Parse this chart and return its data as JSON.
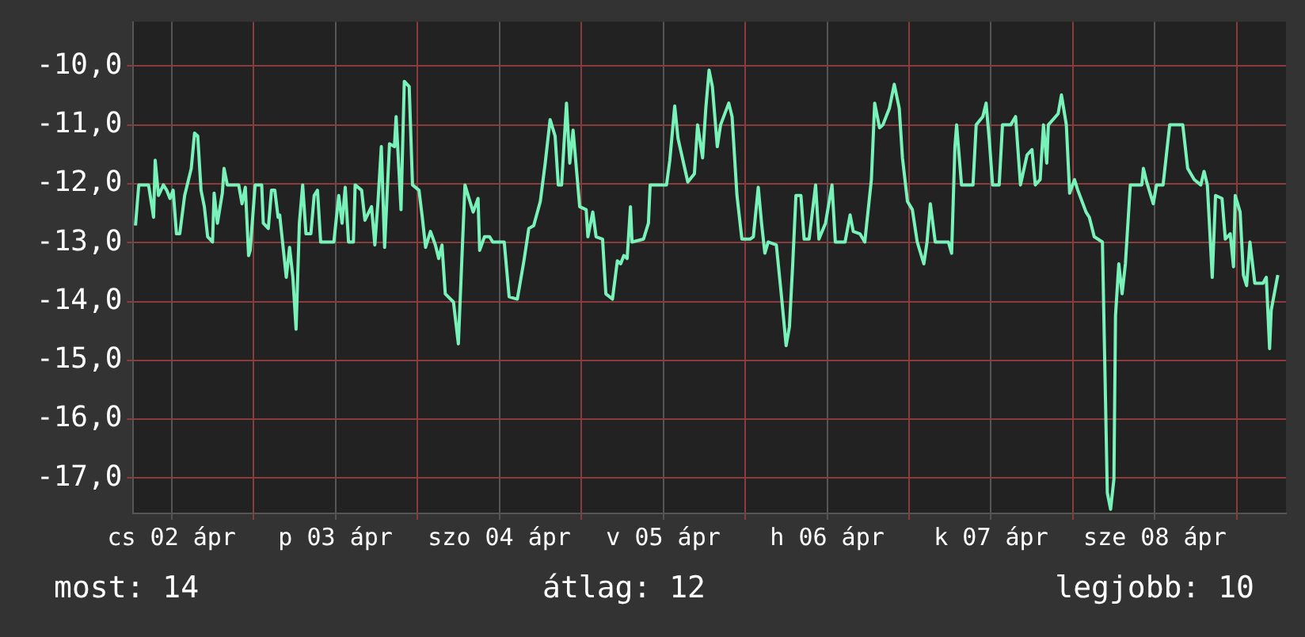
{
  "chart_data": {
    "type": "line",
    "xlim": [
      "--04-02T06:24",
      "--04-09T07:12"
    ],
    "ylim": [
      -17.6,
      -9.25
    ],
    "xticks": [
      {
        "value": "--04-02T12:00",
        "label": "cs 02 ápr"
      },
      {
        "value": "--04-03",
        "label": null
      },
      {
        "value": "--04-03T12:00",
        "label": "p 03 ápr"
      },
      {
        "value": "--04-04",
        "label": null
      },
      {
        "value": "--04-04T12:00",
        "label": "szo 04 ápr"
      },
      {
        "value": "--04-05",
        "label": null
      },
      {
        "value": "--04-05T12:00",
        "label": "v 05 ápr"
      },
      {
        "value": "--04-06",
        "label": null
      },
      {
        "value": "--04-06T12:00",
        "label": "h 06 ápr"
      },
      {
        "value": "--04-07",
        "label": null
      },
      {
        "value": "--04-07T12:00",
        "label": "k 07 ápr"
      },
      {
        "value": "--04-08",
        "label": null
      },
      {
        "value": "--04-08T12:00",
        "label": "sze 08 ápr"
      },
      {
        "value": "--04-09",
        "label": null
      }
    ],
    "yticks": [
      {
        "value": -10,
        "label": "-10,0"
      },
      {
        "value": -11,
        "label": "-11,0"
      },
      {
        "value": -12,
        "label": "-12,0"
      },
      {
        "value": -13,
        "label": "-13,0"
      },
      {
        "value": -14,
        "label": "-14,0"
      },
      {
        "value": -15,
        "label": "-15,0"
      },
      {
        "value": -16,
        "label": "-16,0"
      },
      {
        "value": -17,
        "label": "-17,0"
      }
    ],
    "grid": true,
    "legend": false,
    "marker": "none",
    "line_style": "solid",
    "annotations": [
      "most: 14",
      "átlag: 12",
      "legjobb: 10"
    ],
    "series": [
      {
        "color": "#78f2b8",
        "x": [
          "--04-02T06:43",
          "--04-02T07:12",
          "--04-02T08:38",
          "--04-02T09:22",
          "--04-02T09:36",
          "--04-02T10:05",
          "--04-02T10:48",
          "--04-02T11:17",
          "--04-02T11:46",
          "--04-02T12:14",
          "--04-02T12:43",
          "--04-02T13:12",
          "--04-02T13:55",
          "--04-02T14:53",
          "--04-02T15:22",
          "--04-02T15:50",
          "--04-02T16:19",
          "--04-02T16:48",
          "--04-02T17:17",
          "--04-02T18:00",
          "--04-02T18:14",
          "--04-02T18:43",
          "--04-02T19:26",
          "--04-02T19:41",
          "--04-02T20:10",
          "--04-02T21:50",
          "--04-02T22:19",
          "--04-02T22:48",
          "--04-02T23:17",
          "--04-02T23:31",
          "--04-03T00:14",
          "--04-03T01:12",
          "--04-03T01:26",
          "--04-03T02:10",
          "--04-03T02:38",
          "--04-03T03:07",
          "--04-03T03:36",
          "--04-03T03:50",
          "--04-03T04:48",
          "--04-03T05:17",
          "--04-03T05:46",
          "--04-03T06:14",
          "--04-03T06:43",
          "--04-03T07:12",
          "--04-03T07:41",
          "--04-03T08:24",
          "--04-03T08:53",
          "--04-03T09:22",
          "--04-03T09:50",
          "--04-03T11:46",
          "--04-03T12:29",
          "--04-03T12:58",
          "--04-03T13:26",
          "--04-03T13:55",
          "--04-03T14:38",
          "--04-03T14:53",
          "--04-03T15:50",
          "--04-03T16:19",
          "--04-03T17:17",
          "--04-03T17:46",
          "--04-03T18:14",
          "--04-03T18:43",
          "--04-03T19:12",
          "--04-03T19:55",
          "--04-03T20:38",
          "--04-03T20:53",
          "--04-03T21:36",
          "--04-03T22:05",
          "--04-03T22:48",
          "--04-03T23:17",
          "--04-04T00:14",
          "--04-04T00:43",
          "--04-04T01:12",
          "--04-04T01:55",
          "--04-04T02:38",
          "--04-04T03:07",
          "--04-04T03:36",
          "--04-04T04:05",
          "--04-04T05:17",
          "--04-04T06:00",
          "--04-04T06:29",
          "--04-04T06:58",
          "--04-04T07:26",
          "--04-04T08:10",
          "--04-04T08:53",
          "--04-04T09:07",
          "--04-04T09:50",
          "--04-04T10:34",
          "--04-04T11:02",
          "--04-04T12:43",
          "--04-04T13:26",
          "--04-04T14:38",
          "--04-04T15:36",
          "--04-04T16:19",
          "--04-04T17:02",
          "--04-04T18:00",
          "--04-04T18:43",
          "--04-04T19:26",
          "--04-04T20:10",
          "--04-04T20:38",
          "--04-04T21:07",
          "--04-04T21:50",
          "--04-04T22:19",
          "--04-04T22:48",
          "--04-04T23:46",
          "--04-05T00:43",
          "--04-05T00:58",
          "--04-05T01:41",
          "--04-05T02:10",
          "--04-05T03:07",
          "--04-05T03:36",
          "--04-05T04:34",
          "--04-05T05:17",
          "--04-05T05:46",
          "--04-05T06:14",
          "--04-05T06:43",
          "--04-05T07:12",
          "--04-05T07:26",
          "--04-05T09:07",
          "--04-05T09:50",
          "--04-05T10:05",
          "--04-05T12:29",
          "--04-05T12:58",
          "--04-05T13:41",
          "--04-05T14:10",
          "--04-05T15:36",
          "--04-05T16:34",
          "--04-05T17:02",
          "--04-05T17:46",
          "--04-05T18:14",
          "--04-05T18:43",
          "--04-05T19:12",
          "--04-05T19:55",
          "--04-05T20:24",
          "--04-05T21:36",
          "--04-05T22:05",
          "--04-05T22:48",
          "--04-05T23:31",
          "--04-06T00:43",
          "--04-06T01:12",
          "--04-06T01:55",
          "--04-06T02:24",
          "--04-06T02:53",
          "--04-06T03:22",
          "--04-06T04:34",
          "--04-06T05:17",
          "--04-06T06:00",
          "--04-06T06:29",
          "--04-06T06:58",
          "--04-06T07:26",
          "--04-06T08:10",
          "--04-06T08:38",
          "--04-06T09:22",
          "--04-06T10:19",
          "--04-06T10:48",
          "--04-06T11:46",
          "--04-06T12:43",
          "--04-06T13:12",
          "--04-06T14:38",
          "--04-06T15:22",
          "--04-06T15:50",
          "--04-06T16:48",
          "--04-06T17:31",
          "--04-06T18:29",
          "--04-06T18:58",
          "--04-06T19:41",
          "--04-06T20:10",
          "--04-06T21:07",
          "--04-06T21:50",
          "--04-06T22:34",
          "--04-06T23:02",
          "--04-06T23:46",
          "--04-07T00:29",
          "--04-07T01:12",
          "--04-07T02:10",
          "--04-07T02:38",
          "--04-07T03:07",
          "--04-07T03:50",
          "--04-07T05:46",
          "--04-07T06:14",
          "--04-07T06:43",
          "--04-07T06:58",
          "--04-07T07:41",
          "--04-07T09:22",
          "--04-07T09:50",
          "--04-07T10:48",
          "--04-07T11:17",
          "--04-07T11:46",
          "--04-07T12:14",
          "--04-07T13:12",
          "--04-07T13:41",
          "--04-07T14:53",
          "--04-07T15:36",
          "--04-07T16:19",
          "--04-07T17:17",
          "--04-07T18:00",
          "--04-07T18:29",
          "--04-07T19:12",
          "--04-07T19:41",
          "--04-07T20:10",
          "--04-07T20:24",
          "--04-07T21:50",
          "--04-07T22:19",
          "--04-07T23:02",
          "--04-07T23:31",
          "--04-08T00:14",
          "--04-08T00:43",
          "--04-08T01:55",
          "--04-08T02:24",
          "--04-08T03:07",
          "--04-08T04:19",
          "--04-08T05:02",
          "--04-08T05:31",
          "--04-08T06:00",
          "--04-08T06:14",
          "--04-08T06:43",
          "--04-08T07:12",
          "--04-08T07:41",
          "--04-08T08:24",
          "--04-08T10:05",
          "--04-08T10:19",
          "--04-08T10:48",
          "--04-08T11:46",
          "--04-08T12:14",
          "--04-08T13:12",
          "--04-08T14:10",
          "--04-08T16:05",
          "--04-08T16:48",
          "--04-08T17:46",
          "--04-08T18:43",
          "--04-08T19:12",
          "--04-08T19:41",
          "--04-08T20:24",
          "--04-08T20:53",
          "--04-08T21:50",
          "--04-08T22:19",
          "--04-08T23:02",
          "--04-08T23:31",
          "--04-08T23:46",
          "--04-09T00:29",
          "--04-09T00:58",
          "--04-09T01:26",
          "--04-09T01:55",
          "--04-09T02:38",
          "--04-09T03:50",
          "--04-09T04:19",
          "--04-09T04:48",
          "--04-09T05:02",
          "--04-09T06:00"
        ],
        "values": [
          -12.71,
          -12.02,
          -12.02,
          -12.57,
          -11.6,
          -12.2,
          -12.02,
          -12.11,
          -12.25,
          -12.11,
          -12.85,
          -12.85,
          -12.2,
          -11.74,
          -11.14,
          -11.19,
          -12.11,
          -12.39,
          -12.9,
          -12.99,
          -12.16,
          -12.67,
          -12.16,
          -11.74,
          -12.02,
          -12.02,
          -12.34,
          -12.06,
          -13.22,
          -13.13,
          -12.02,
          -12.02,
          -12.67,
          -12.76,
          -12.11,
          -12.11,
          -12.57,
          -12.53,
          -13.59,
          -13.08,
          -13.59,
          -14.47,
          -12.67,
          -12.02,
          -12.85,
          -12.85,
          -12.2,
          -12.11,
          -12.99,
          -12.99,
          -12.2,
          -12.67,
          -12.06,
          -12.99,
          -12.99,
          -12.02,
          -12.11,
          -12.62,
          -12.39,
          -13.04,
          -12.3,
          -11.37,
          -13.08,
          -11.32,
          -11.37,
          -10.86,
          -12.44,
          -10.26,
          -10.35,
          -12.02,
          -12.11,
          -12.57,
          -13.08,
          -12.81,
          -13.04,
          -13.27,
          -13.04,
          -13.87,
          -14.01,
          -14.72,
          -13.36,
          -12.02,
          -12.2,
          -12.48,
          -12.25,
          -13.13,
          -12.9,
          -12.9,
          -12.99,
          -12.99,
          -13.92,
          -13.96,
          -13.31,
          -12.76,
          -12.71,
          -12.3,
          -11.65,
          -10.91,
          -11.19,
          -12.02,
          -12.02,
          -10.63,
          -11.65,
          -11.09,
          -12.39,
          -12.44,
          -12.9,
          -12.48,
          -12.9,
          -12.94,
          -13.87,
          -13.96,
          -13.31,
          -13.36,
          -13.22,
          -13.27,
          -12.39,
          -12.99,
          -12.94,
          -12.67,
          -12.02,
          -12.02,
          -11.6,
          -10.68,
          -11.23,
          -11.97,
          -11.83,
          -11.0,
          -11.56,
          -10.72,
          -10.07,
          -10.35,
          -11.37,
          -11.0,
          -10.63,
          -10.86,
          -12.2,
          -12.94,
          -12.94,
          -12.9,
          -12.06,
          -12.67,
          -13.18,
          -12.99,
          -13.04,
          -13.87,
          -14.75,
          -14.43,
          -13.36,
          -12.2,
          -12.2,
          -12.94,
          -12.94,
          -12.02,
          -12.94,
          -12.67,
          -12.02,
          -12.99,
          -12.99,
          -12.53,
          -12.81,
          -12.85,
          -12.99,
          -11.93,
          -10.63,
          -11.05,
          -11.0,
          -10.72,
          -10.31,
          -10.72,
          -11.56,
          -12.3,
          -12.44,
          -12.99,
          -13.36,
          -12.99,
          -12.34,
          -12.99,
          -12.99,
          -13.18,
          -11.37,
          -11.0,
          -12.02,
          -12.02,
          -11.0,
          -10.86,
          -10.63,
          -11.28,
          -12.02,
          -12.02,
          -11.0,
          -11.0,
          -10.86,
          -12.02,
          -11.51,
          -11.42,
          -12.02,
          -11.93,
          -11.0,
          -11.65,
          -11.0,
          -10.81,
          -10.49,
          -11.0,
          -12.16,
          -11.93,
          -12.11,
          -12.48,
          -12.57,
          -12.9,
          -12.99,
          -17.25,
          -17.53,
          -17.02,
          -14.24,
          -13.36,
          -13.87,
          -13.36,
          -12.02,
          -12.02,
          -11.74,
          -11.97,
          -12.34,
          -12.02,
          -12.02,
          -11.0,
          -11.0,
          -11.74,
          -11.93,
          -12.02,
          -11.79,
          -12.02,
          -13.59,
          -12.2,
          -12.25,
          -12.94,
          -12.85,
          -13.41,
          -12.2,
          -12.48,
          -13.55,
          -13.73,
          -12.99,
          -13.69,
          -13.69,
          -13.59,
          -14.8,
          -14.15,
          -13.55
        ]
      }
    ]
  }
}
